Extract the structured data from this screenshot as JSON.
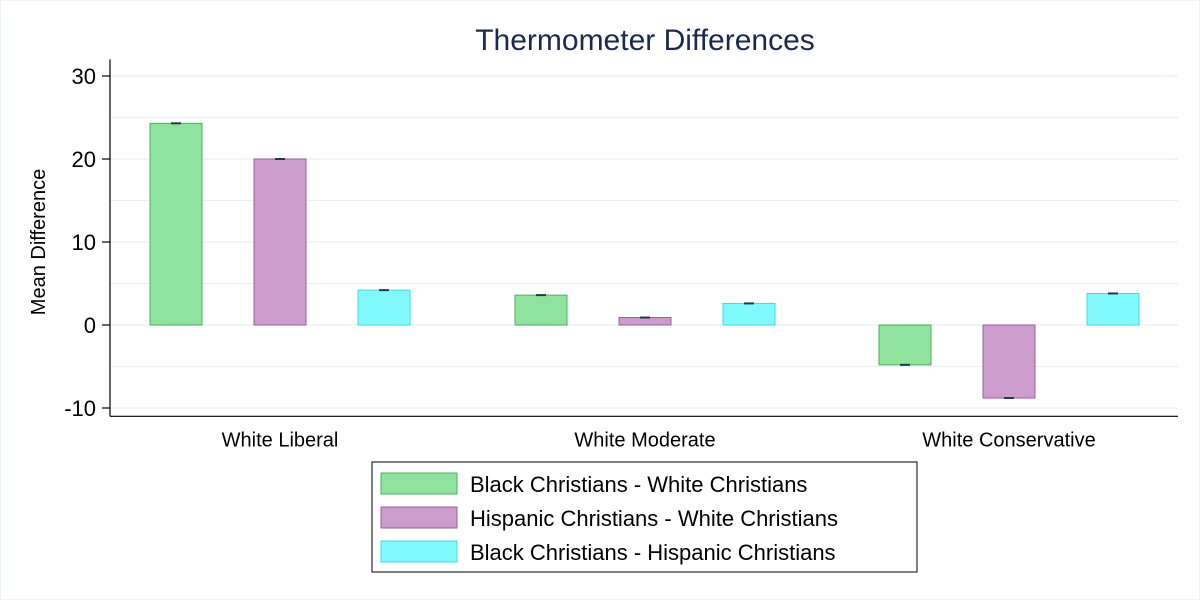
{
  "chart_data": {
    "type": "bar",
    "title": "Thermometer Differences",
    "xlabel": "",
    "ylabel": "Mean Difference",
    "ylim": [
      -11,
      32
    ],
    "yticks": [
      -10,
      0,
      10,
      20,
      30
    ],
    "grid": true,
    "legend_position": "bottom-center",
    "categories": [
      "White Liberal",
      "White Moderate",
      "White Conservative"
    ],
    "series": [
      {
        "name": "Black Christians - White Christians",
        "values": [
          24.3,
          3.6,
          -4.8
        ],
        "fill": "#90e29f",
        "stroke": "#4caf5f"
      },
      {
        "name": "Hispanic Christians - White Christians",
        "values": [
          20.0,
          0.9,
          -8.8
        ],
        "fill": "#cc9ccc",
        "stroke": "#9a5f9f"
      },
      {
        "name": "Black Christians - Hispanic Christians",
        "values": [
          4.2,
          2.6,
          3.8
        ],
        "fill": "#80fafc",
        "stroke": "#40d8e0"
      }
    ]
  }
}
